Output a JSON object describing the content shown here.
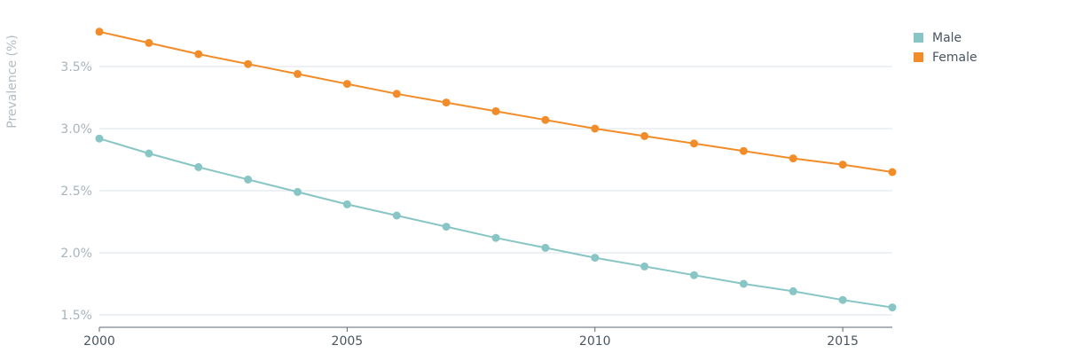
{
  "chart_data": {
    "type": "line",
    "ylabel": "Prevalence (%)",
    "xlabel": "",
    "xlim": [
      2000,
      2016
    ],
    "ylim": [
      1.4,
      3.8
    ],
    "x_ticks": [
      2000,
      2005,
      2010,
      2015
    ],
    "x_tick_labels": [
      "2000",
      "2005",
      "2010",
      "2015"
    ],
    "y_ticks": [
      1.5,
      2.0,
      2.5,
      3.0,
      3.5
    ],
    "y_tick_labels": [
      "1.5%",
      "2.0%",
      "2.5%",
      "3.0%",
      "3.5%"
    ],
    "grid": true,
    "legend_position": "top-right",
    "x": [
      2000,
      2001,
      2002,
      2003,
      2004,
      2005,
      2006,
      2007,
      2008,
      2009,
      2010,
      2011,
      2012,
      2013,
      2014,
      2015,
      2016
    ],
    "series": [
      {
        "name": "Male",
        "color": "#88c5c5",
        "values": [
          2.92,
          2.8,
          2.69,
          2.59,
          2.49,
          2.39,
          2.3,
          2.21,
          2.12,
          2.04,
          1.96,
          1.89,
          1.82,
          1.75,
          1.69,
          1.62,
          1.56
        ]
      },
      {
        "name": "Female",
        "color": "#f28c28",
        "values": [
          3.78,
          3.69,
          3.6,
          3.52,
          3.44,
          3.36,
          3.28,
          3.21,
          3.14,
          3.07,
          3.0,
          2.94,
          2.88,
          2.82,
          2.76,
          2.71,
          2.65
        ]
      }
    ]
  }
}
